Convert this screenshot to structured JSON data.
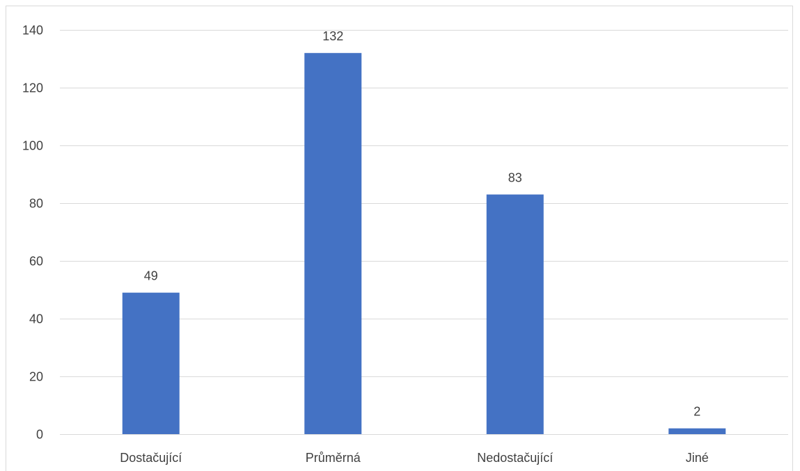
{
  "chart_data": {
    "type": "bar",
    "title": "",
    "xlabel": "",
    "ylabel": "",
    "categories": [
      "Dostačující",
      "Průměrná",
      "Nedostačující",
      "Jiné"
    ],
    "values": [
      49,
      132,
      83,
      2
    ],
    "data_labels": [
      "49",
      "132",
      "83",
      "2"
    ],
    "ylim": [
      0,
      140
    ],
    "y_ticks": [
      0,
      20,
      40,
      60,
      80,
      100,
      120,
      140
    ],
    "y_tick_labels": [
      "0",
      "20",
      "40",
      "60",
      "80",
      "100",
      "120",
      "140"
    ],
    "grid": true,
    "legend": "none",
    "bar_color": "#4472c4",
    "grid_color": "#d9d9d9",
    "text_color": "#404040"
  }
}
